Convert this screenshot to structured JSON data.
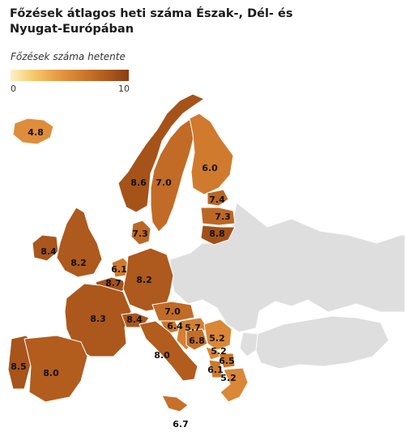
{
  "title": "Főzések átlagos heti száma Észak-, Dél- és Nyugat-Európában",
  "legend": {
    "label": "Főzések száma hetente",
    "min_label": "0",
    "max_label": "10",
    "min": 0,
    "max": 10,
    "color_low": "#fdf1c6",
    "color_high": "#8b3d12",
    "no_data_color": "#dedede"
  },
  "countries": [
    {
      "name": "Iceland",
      "value": 4.8,
      "label": "4.8"
    },
    {
      "name": "Norway",
      "value": 8.6,
      "label": "8.6"
    },
    {
      "name": "Sweden",
      "value": 7.0,
      "label": "7.0"
    },
    {
      "name": "Finland",
      "value": 6.0,
      "label": "6.0"
    },
    {
      "name": "Estonia",
      "value": 7.4,
      "label": "7.4"
    },
    {
      "name": "Latvia",
      "value": 7.3,
      "label": "7.3"
    },
    {
      "name": "Lithuania",
      "value": 8.8,
      "label": "8.8"
    },
    {
      "name": "Denmark",
      "value": 7.3,
      "label": "7.3"
    },
    {
      "name": "Ireland",
      "value": 8.4,
      "label": "8.4"
    },
    {
      "name": "United Kingdom",
      "value": 8.2,
      "label": "8.2"
    },
    {
      "name": "Netherlands",
      "value": 6.1,
      "label": "6.1"
    },
    {
      "name": "Belgium",
      "value": 8.7,
      "label": "8.7"
    },
    {
      "name": "Germany",
      "value": 8.2,
      "label": "8.2"
    },
    {
      "name": "France",
      "value": 8.3,
      "label": "8.3"
    },
    {
      "name": "Switzerland",
      "value": 8.4,
      "label": "8.4"
    },
    {
      "name": "Austria",
      "value": 7.0,
      "label": "7.0"
    },
    {
      "name": "Slovenia",
      "value": 6.4,
      "label": "6.4"
    },
    {
      "name": "Croatia",
      "value": 5.7,
      "label": "5.7"
    },
    {
      "name": "Bosnia and Herzegovina",
      "value": 6.8,
      "label": "6.8"
    },
    {
      "name": "Serbia",
      "value": 5.2,
      "label": "5.2"
    },
    {
      "name": "Montenegro",
      "value": 5.2,
      "label": "5.2"
    },
    {
      "name": "North Macedonia",
      "value": 6.5,
      "label": "6.5"
    },
    {
      "name": "Albania",
      "value": 6.1,
      "label": "6.1"
    },
    {
      "name": "Greece",
      "value": 5.2,
      "label": "5.2"
    },
    {
      "name": "Italy",
      "value": 8.0,
      "label": "8.0"
    },
    {
      "name": "Malta",
      "value": 6.7,
      "label": "6.7"
    },
    {
      "name": "Portugal",
      "value": 8.5,
      "label": "8.5"
    },
    {
      "name": "Spain",
      "value": 8.0,
      "label": "8.0"
    }
  ]
}
